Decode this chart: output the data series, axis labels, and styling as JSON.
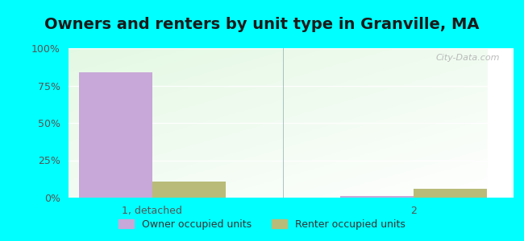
{
  "title": "Owners and renters by unit type in Granville, MA",
  "categories": [
    "1, detached",
    "2"
  ],
  "owner_values": [
    84,
    1
  ],
  "renter_values": [
    11,
    6
  ],
  "owner_color": "#c8a8d8",
  "renter_color": "#b8bc78",
  "bar_width": 0.28,
  "ylim": [
    0,
    100
  ],
  "yticks": [
    0,
    25,
    50,
    75,
    100
  ],
  "ytick_labels": [
    "0%",
    "25%",
    "50%",
    "75%",
    "100%"
  ],
  "outer_background": "#00ffff",
  "plot_bg_colors": [
    "#d0ead0",
    "#f0faf0",
    "#f8fff8",
    "#ffffff"
  ],
  "legend_owner": "Owner occupied units",
  "legend_renter": "Renter occupied units",
  "title_fontsize": 14,
  "tick_fontsize": 9,
  "legend_fontsize": 9,
  "watermark": "City-Data.com"
}
